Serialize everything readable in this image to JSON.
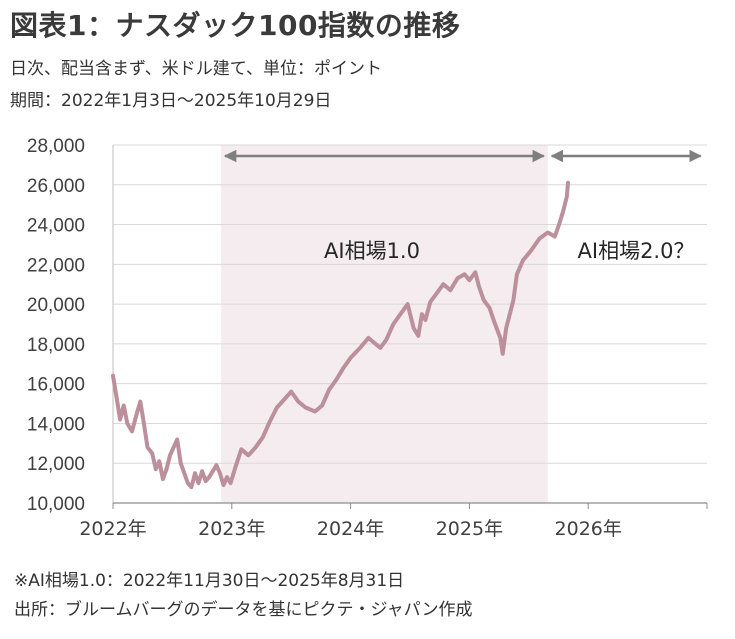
{
  "header": {
    "title": "図表1：ナスダック100指数の推移",
    "subtitle1": "日次、配当含まず、米ドル建て、単位：ポイント",
    "subtitle2": "期間：2022年1月3日～2025年10月29日"
  },
  "footer": {
    "note1": "※AI相場1.0：2022年11月30日～2025年8月31日",
    "note2": "出所：ブルームバーグのデータを基にピクテ・ジャパン作成"
  },
  "colors": {
    "line": "#bb8f9b",
    "shade": "#f4ecef",
    "arrow": "#7f7f7f",
    "grid": "#d9d9d9"
  },
  "chart_data": {
    "type": "line",
    "title": "",
    "xlabel": "",
    "ylabel": "",
    "ylim": [
      10000,
      28000
    ],
    "yticks": [
      "10,000",
      "12,000",
      "14,000",
      "16,000",
      "18,000",
      "20,000",
      "22,000",
      "24,000",
      "26,000",
      "28,000"
    ],
    "ytick_values": [
      10000,
      12000,
      14000,
      16000,
      18000,
      20000,
      22000,
      24000,
      26000,
      28000
    ],
    "xlim": [
      2022.0,
      2027.0
    ],
    "xticks": [
      "2022年",
      "2023年",
      "2024年",
      "2025年",
      "2026年"
    ],
    "xtick_values": [
      2022,
      2023,
      2024,
      2025,
      2026
    ],
    "grid": "horizontal",
    "shaded_region": {
      "x": [
        2022.91,
        2025.66
      ],
      "label": "AI相場1.0"
    },
    "arrows": [
      {
        "x": [
          2022.91,
          2025.66
        ],
        "label": "AI相場1.0"
      },
      {
        "x": [
          2025.66,
          2026.98
        ],
        "label": "AI相場2.0？"
      }
    ],
    "series": [
      {
        "name": "",
        "x": [
          2022.0,
          2022.03,
          2022.06,
          2022.09,
          2022.12,
          2022.16,
          2022.2,
          2022.23,
          2022.26,
          2022.29,
          2022.33,
          2022.36,
          2022.39,
          2022.42,
          2022.45,
          2022.48,
          2022.51,
          2022.54,
          2022.57,
          2022.6,
          2022.63,
          2022.66,
          2022.69,
          2022.72,
          2022.75,
          2022.78,
          2022.81,
          2022.84,
          2022.87,
          2022.9,
          2022.93,
          2022.96,
          2022.99,
          2023.03,
          2023.08,
          2023.14,
          2023.2,
          2023.26,
          2023.32,
          2023.38,
          2023.44,
          2023.5,
          2023.56,
          2023.62,
          2023.7,
          2023.76,
          2023.82,
          2023.88,
          2023.94,
          2024.0,
          2024.08,
          2024.15,
          2024.25,
          2024.3,
          2024.36,
          2024.42,
          2024.48,
          2024.53,
          2024.57,
          2024.6,
          2024.63,
          2024.67,
          2024.72,
          2024.78,
          2024.84,
          2024.9,
          2024.96,
          2025.0,
          2025.05,
          2025.08,
          2025.12,
          2025.17,
          2025.21,
          2025.26,
          2025.28,
          2025.31,
          2025.34,
          2025.37,
          2025.4,
          2025.45,
          2025.52,
          2025.59,
          2025.66,
          2025.72,
          2025.76,
          2025.79,
          2025.82,
          2025.83
        ],
        "values": [
          16400,
          15300,
          14200,
          14900,
          14000,
          13600,
          14500,
          15100,
          14000,
          12800,
          12500,
          11700,
          12100,
          11200,
          11700,
          12400,
          12800,
          13200,
          12000,
          11500,
          11000,
          10800,
          11500,
          11000,
          11600,
          11100,
          11300,
          11600,
          11900,
          11500,
          10900,
          11300,
          11000,
          11800,
          12700,
          12400,
          12800,
          13300,
          14100,
          14800,
          15200,
          15600,
          15100,
          14800,
          14600,
          14900,
          15700,
          16200,
          16800,
          17300,
          17800,
          18300,
          17800,
          18200,
          19000,
          19500,
          20000,
          18800,
          18400,
          19500,
          19200,
          20100,
          20500,
          21000,
          20700,
          21300,
          21500,
          21200,
          21600,
          20900,
          20200,
          19800,
          19100,
          18300,
          17500,
          18800,
          19500,
          20200,
          21500,
          22200,
          22700,
          23300,
          23600,
          23400,
          24100,
          24700,
          25400,
          26100
        ]
      }
    ]
  }
}
